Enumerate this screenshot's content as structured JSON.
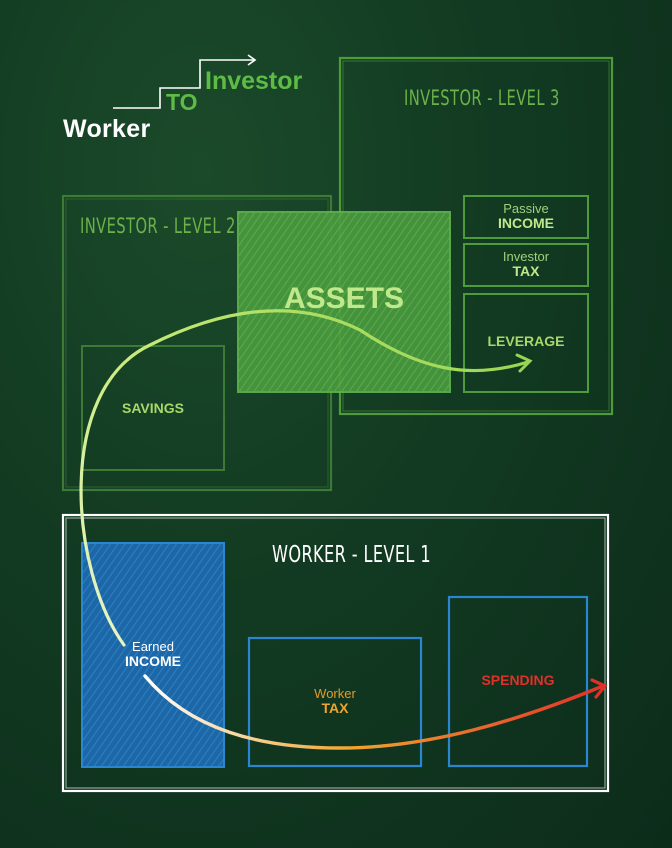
{
  "logo": {
    "worker": "Worker",
    "to": "TO",
    "investor": "Investor"
  },
  "levels": {
    "level3": "INVESTOR - LEVEL 3",
    "level2": "INVESTOR - LEVEL 2",
    "level1": "WORKER - LEVEL 1"
  },
  "boxes": {
    "assets": "ASSETS",
    "savings": "SAVINGS",
    "leverage": "LEVERAGE",
    "passive_line1": "Passive",
    "passive_line2": "INCOME",
    "investor_tax_line1": "Investor",
    "investor_tax_line2": "TAX",
    "earned_line1": "Earned",
    "earned_line2": "INCOME",
    "worker_tax_line1": "Worker",
    "worker_tax_line2": "TAX",
    "spending": "SPENDING"
  },
  "colors": {
    "investor_green": "#5dbb46",
    "assets_fill": "#3f8f3a",
    "earned_blue": "#1f6fb0",
    "box_blue": "#2a86d1",
    "worker_tax_orange": "#f0a52f",
    "spending_red": "#e0302a",
    "worker_frame": "#ffffff"
  },
  "icons": {
    "logo_arrow": "step-arrow-icon",
    "flow_arrow_upper": "curved-arrow-icon",
    "flow_arrow_lower": "curved-arrow-icon"
  }
}
